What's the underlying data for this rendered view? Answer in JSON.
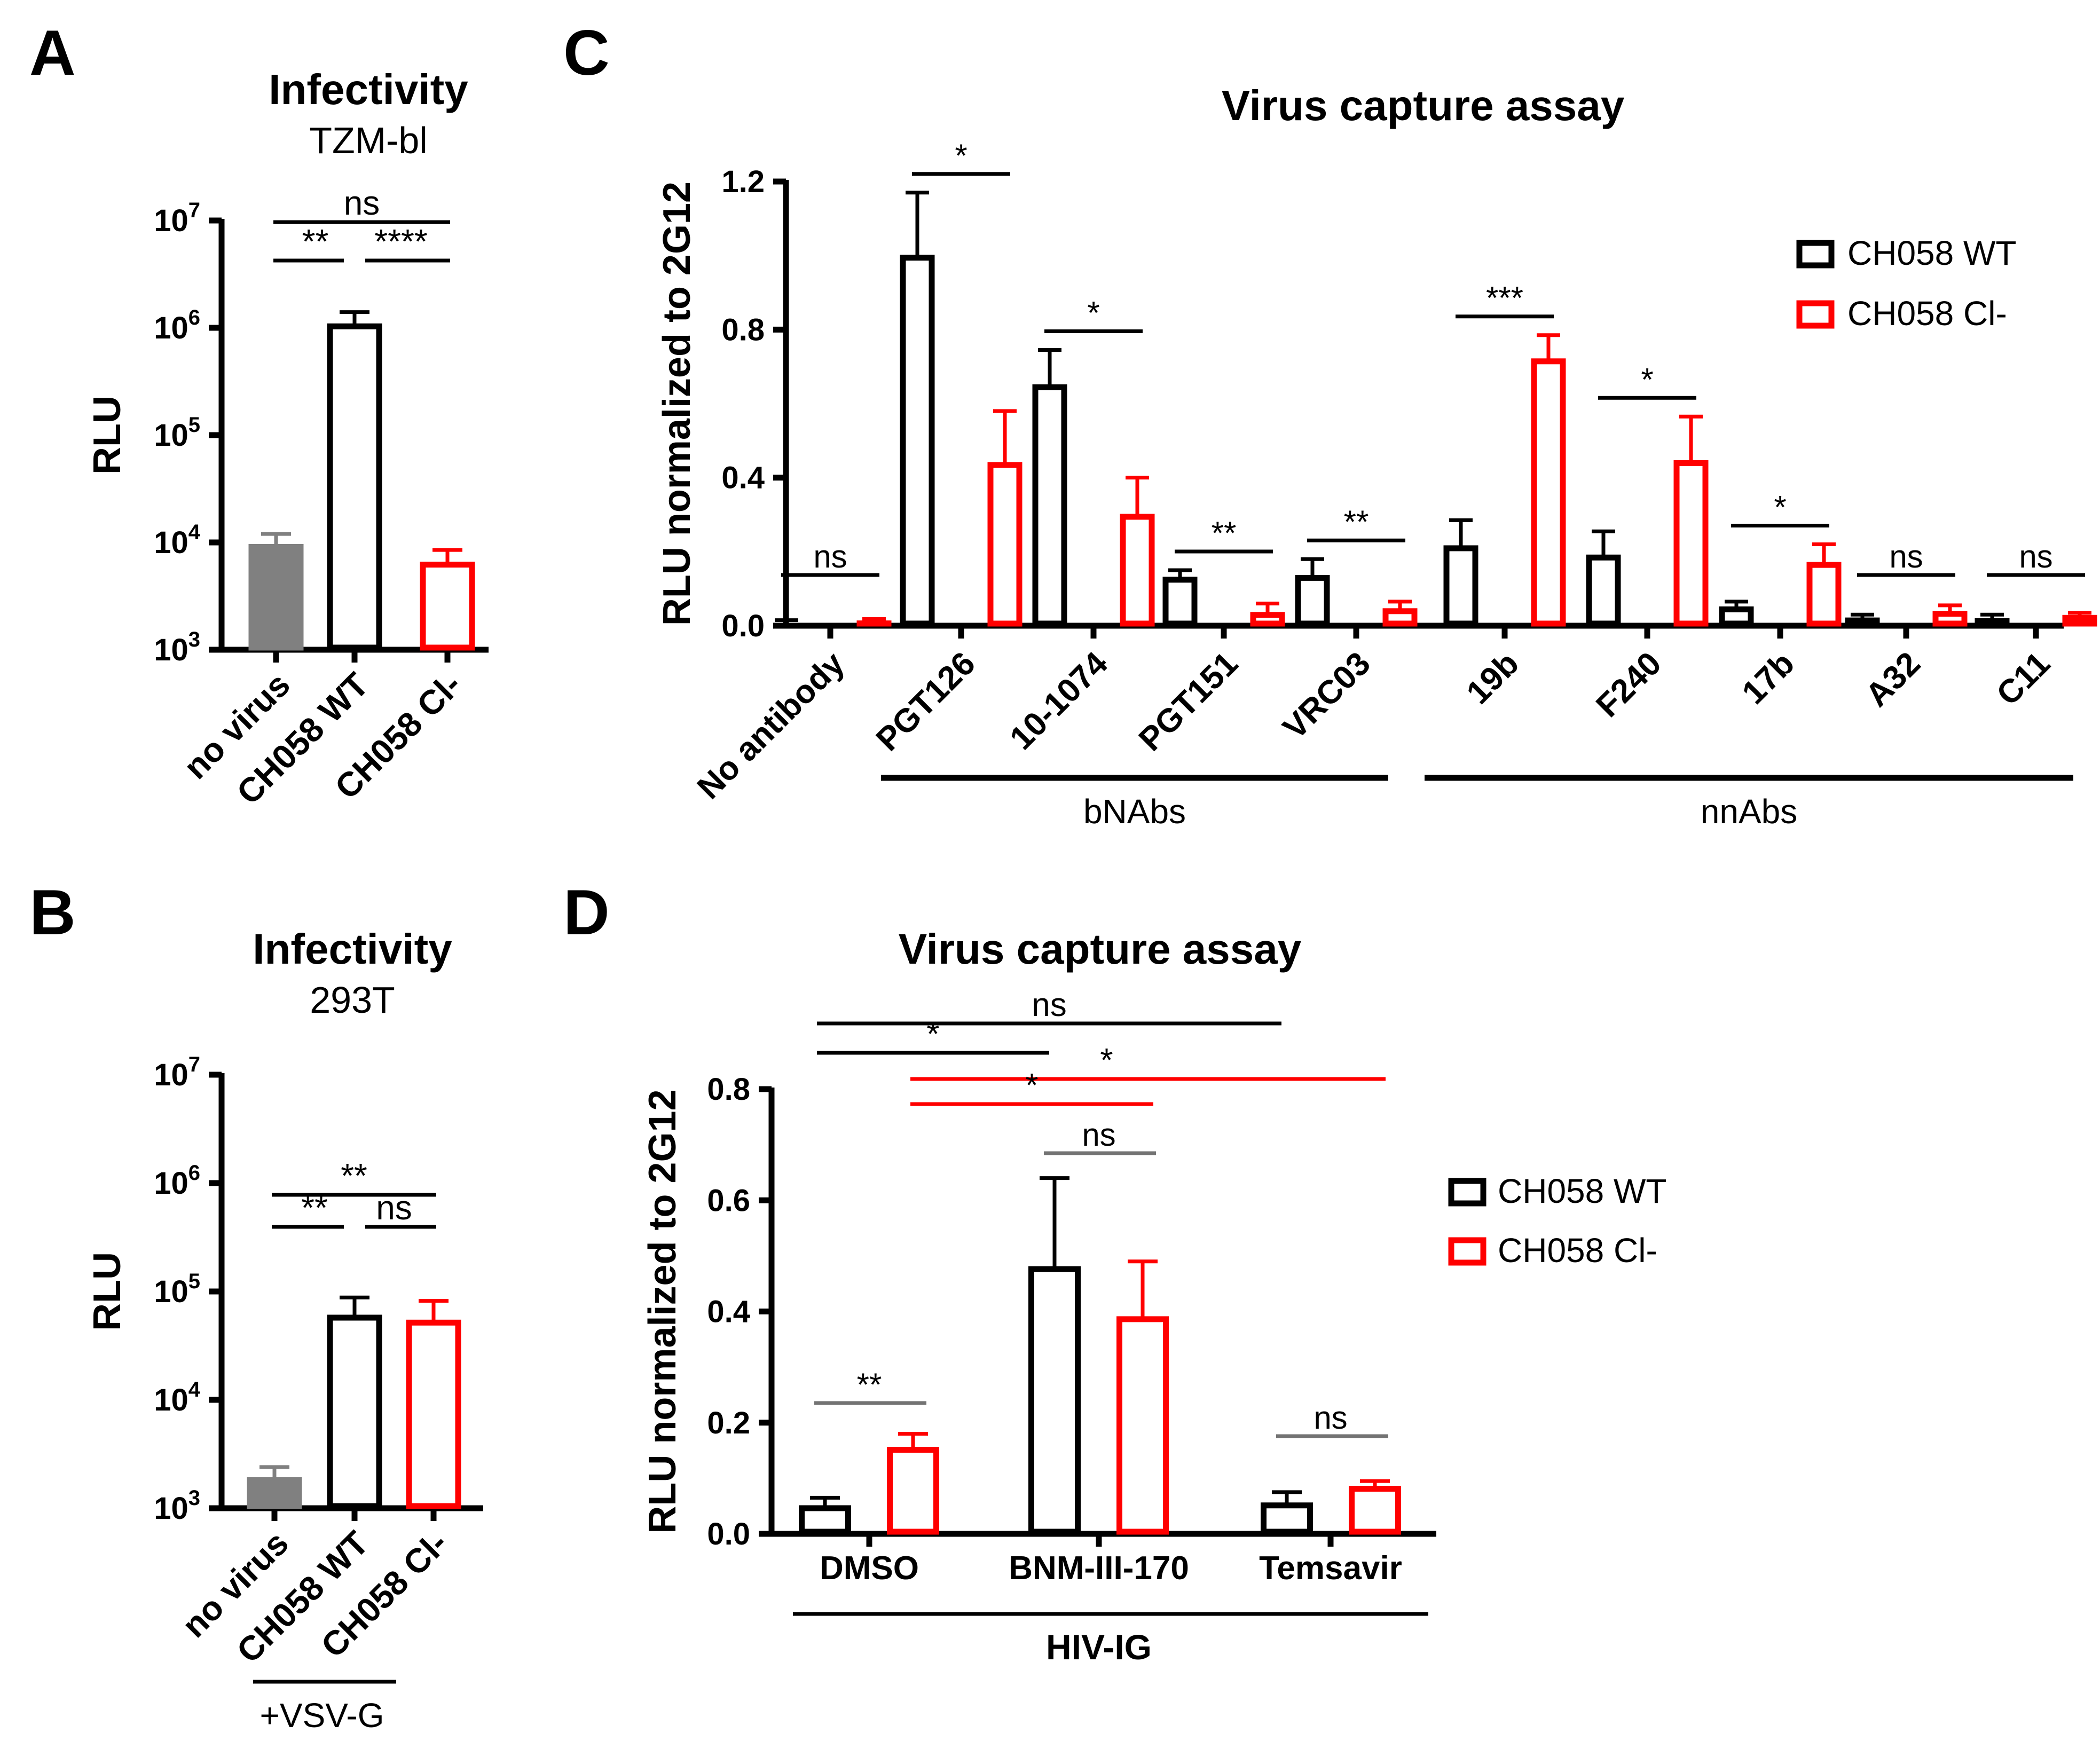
{
  "colors": {
    "wt": "#000000",
    "cl": "#ff0000",
    "novirus": "#808080",
    "gray_sig": "#737373"
  },
  "legend": {
    "wt": "CH058 WT",
    "cl": "CH058 Cl-"
  },
  "chart_data": [
    {
      "panel": "A",
      "type": "bar",
      "title": "Infectivity",
      "subtitle": "TZM-bl",
      "ylabel": "RLU",
      "yscale": "log",
      "ylim": [
        1000,
        10000000
      ],
      "yticks": [
        {
          "b": "10",
          "e": "3"
        },
        {
          "b": "10",
          "e": "4"
        },
        {
          "b": "10",
          "e": "5"
        },
        {
          "b": "10",
          "e": "6"
        },
        {
          "b": "10",
          "e": "7"
        }
      ],
      "categories": [
        "no virus",
        "CH058 WT",
        "CH058 Cl-"
      ],
      "values": [
        9500,
        1080000,
        6500
      ],
      "errors": [
        12000,
        1400000,
        8500
      ],
      "sig": [
        {
          "from": 0,
          "to": 2,
          "label": "ns",
          "level": 1
        },
        {
          "from": 0,
          "to": 1,
          "label": "**",
          "level": 0
        },
        {
          "from": 1,
          "to": 2,
          "label": "****",
          "level": 0
        }
      ]
    },
    {
      "panel": "B",
      "type": "bar",
      "title": "Infectivity",
      "subtitle": "293T",
      "ylabel": "RLU",
      "yscale": "log",
      "ylim": [
        1000,
        10000000
      ],
      "yticks": [
        {
          "b": "10",
          "e": "3"
        },
        {
          "b": "10",
          "e": "4"
        },
        {
          "b": "10",
          "e": "5"
        },
        {
          "b": "10",
          "e": "6"
        },
        {
          "b": "10",
          "e": "7"
        }
      ],
      "categories": [
        "no virus",
        "CH058 WT",
        "CH058 Cl-"
      ],
      "values": [
        1900,
        60000,
        54000
      ],
      "errors": [
        2400,
        88000,
        82000
      ],
      "group_label": "+VSV-G",
      "sig": [
        {
          "from": 0,
          "to": 2,
          "label": "**",
          "level": 1
        },
        {
          "from": 0,
          "to": 1,
          "label": "**",
          "level": 0
        },
        {
          "from": 1,
          "to": 2,
          "label": "ns",
          "level": 0
        }
      ]
    },
    {
      "panel": "C",
      "type": "bar",
      "title": "Virus capture assay",
      "ylabel": "RLU normalized to 2G12",
      "ylim": [
        0,
        1.2
      ],
      "yticks": [
        "0.0",
        "0.4",
        "0.8",
        "1.2"
      ],
      "categories": [
        "No antibody",
        "PGT126",
        "10-1074",
        "PGT151",
        "VRC03",
        "19b",
        "F240",
        "17b",
        "A32",
        "C11"
      ],
      "series": [
        {
          "name": "CH058 WT",
          "values": [
            0.01,
            1.0,
            0.65,
            0.13,
            0.135,
            0.215,
            0.19,
            0.05,
            0.02,
            0.018
          ],
          "errors": [
            0.015,
            1.17,
            0.745,
            0.15,
            0.18,
            0.285,
            0.255,
            0.065,
            0.03,
            0.03
          ]
        },
        {
          "name": "CH058 Cl-",
          "values": [
            0.012,
            0.44,
            0.3,
            0.035,
            0.045,
            0.72,
            0.445,
            0.17,
            0.038,
            0.027
          ],
          "errors": [
            0.018,
            0.58,
            0.4,
            0.06,
            0.065,
            0.785,
            0.565,
            0.22,
            0.055,
            0.035
          ]
        }
      ],
      "sig": [
        "ns",
        "*",
        "*",
        "**",
        "**",
        "***",
        "*",
        "*",
        "ns",
        "ns"
      ],
      "groups": [
        {
          "label": "bNAbs",
          "from": 1,
          "to": 4
        },
        {
          "label": "nnAbs",
          "from": 5,
          "to": 9
        }
      ]
    },
    {
      "panel": "D",
      "type": "bar",
      "title": "Virus capture assay",
      "ylabel": "RLU normalized to 2G12",
      "ylim": [
        0,
        0.8
      ],
      "yticks": [
        "0.0",
        "0.2",
        "0.4",
        "0.6",
        "0.8"
      ],
      "categories": [
        "DMSO",
        "BNM-III-170",
        "Temsavir"
      ],
      "series": [
        {
          "name": "CH058 WT",
          "values": [
            0.05,
            0.48,
            0.055
          ],
          "errors": [
            0.065,
            0.64,
            0.075
          ]
        },
        {
          "name": "CH058 Cl-",
          "values": [
            0.155,
            0.39,
            0.085
          ],
          "errors": [
            0.18,
            0.49,
            0.095
          ]
        }
      ],
      "group_label": "HIV-IG",
      "sig_within": [
        "**",
        "ns",
        "ns"
      ],
      "sig_between": [
        {
          "label": "ns",
          "series": "wt",
          "from": 0,
          "to": 2,
          "level": 3
        },
        {
          "label": "*",
          "series": "wt",
          "from": 0,
          "to": 1,
          "level": 2
        },
        {
          "label": "*",
          "series": "cl",
          "from": 0,
          "to": 2,
          "level": 1
        },
        {
          "label": "*",
          "series": "cl",
          "from": 0,
          "to": 1,
          "level": 0
        }
      ]
    }
  ]
}
